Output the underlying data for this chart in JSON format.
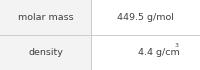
{
  "rows": [
    {
      "label": "molar mass",
      "value": "449.5 g/mol",
      "has_superscript": false,
      "base": "",
      "superscript": ""
    },
    {
      "label": "density",
      "value": "4.4 g/cm",
      "has_superscript": true,
      "base": "4.4 g/cm",
      "superscript": "3"
    }
  ],
  "bg_color": "#ffffff",
  "left_col_bg": "#f3f3f3",
  "border_color": "#cccccc",
  "text_color": "#404040",
  "label_fontsize": 6.8,
  "value_fontsize": 6.8,
  "sup_fontsize": 4.5,
  "col_split": 0.455,
  "figwidth": 2.0,
  "figheight": 0.7,
  "dpi": 100
}
